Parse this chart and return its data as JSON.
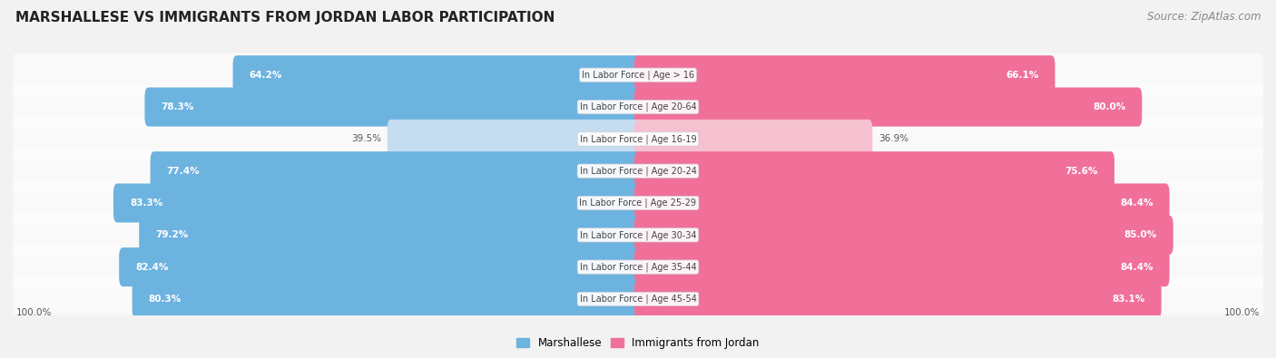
{
  "title": "MARSHALLESE VS IMMIGRANTS FROM JORDAN LABOR PARTICIPATION",
  "source": "Source: ZipAtlas.com",
  "categories": [
    "In Labor Force | Age > 16",
    "In Labor Force | Age 20-64",
    "In Labor Force | Age 16-19",
    "In Labor Force | Age 20-24",
    "In Labor Force | Age 25-29",
    "In Labor Force | Age 30-34",
    "In Labor Force | Age 35-44",
    "In Labor Force | Age 45-54"
  ],
  "marshallese": [
    64.2,
    78.3,
    39.5,
    77.4,
    83.3,
    79.2,
    82.4,
    80.3
  ],
  "jordan": [
    66.1,
    80.0,
    36.9,
    75.6,
    84.4,
    85.0,
    84.4,
    83.1
  ],
  "marshallese_color": "#6db3e0",
  "marshallese_color_light": "#c5ddf0",
  "jordan_color": "#f07099",
  "jordan_color_light": "#f5c0d0",
  "background_color": "#f2f2f2",
  "row_bg_even": "#ebebeb",
  "row_bg_odd": "#f8f8f8",
  "title_fontsize": 11,
  "source_fontsize": 8.5,
  "value_fontsize": 7.5,
  "cat_fontsize": 7,
  "legend_fontsize": 8.5,
  "bottom_label_value": "100.0%"
}
